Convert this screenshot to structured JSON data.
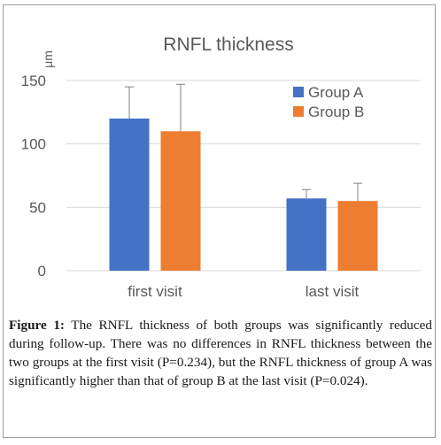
{
  "chart_data": {
    "type": "bar",
    "title": "RNFL thickness",
    "ylabel": "μm",
    "xlabel": "",
    "ylim": [
      0,
      150
    ],
    "yticks": [
      0,
      50,
      100,
      150
    ],
    "grid": true,
    "legend_position": "top-right",
    "categories": [
      "first visit",
      "last visit"
    ],
    "series": [
      {
        "name": "Group A",
        "color": "#4472C4",
        "values": [
          120,
          57
        ],
        "error": [
          25,
          7
        ]
      },
      {
        "name": "Group B",
        "color": "#ED7D31",
        "values": [
          110,
          55
        ],
        "error": [
          37,
          14
        ]
      }
    ]
  },
  "caption": {
    "label": "Figure 1:",
    "text": "The RNFL thickness of both groups was significantly reduced during follow-up. There was no differences in RNFL thickness between the two groups at the first visit (P=0.234), but the RNFL thickness of group A was significantly higher than that of group B at the last visit (P=0.024)."
  }
}
